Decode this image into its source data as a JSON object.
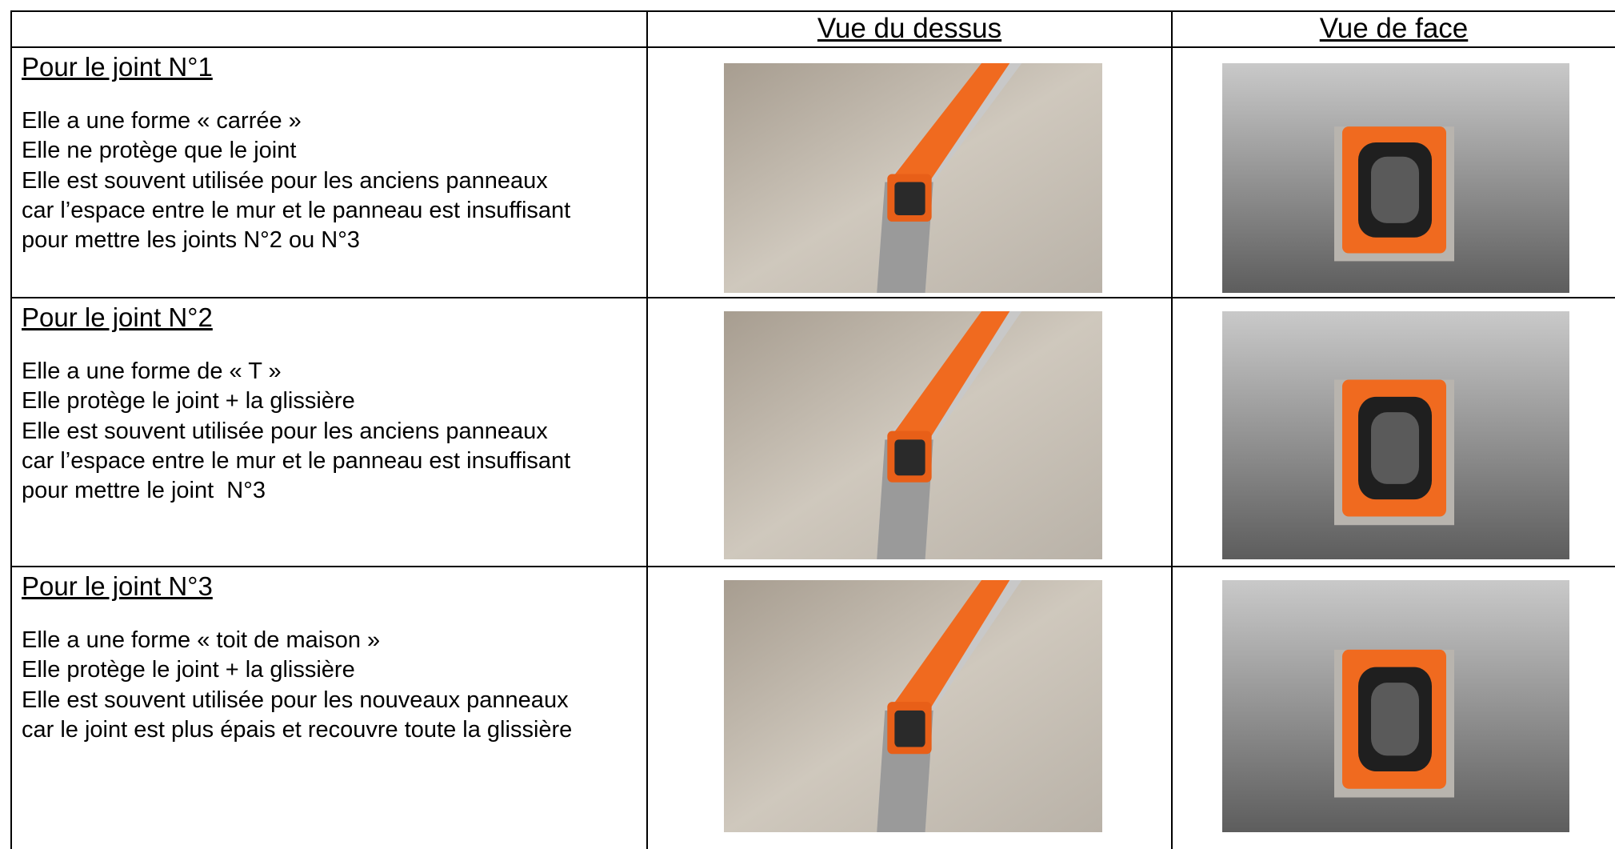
{
  "header": {
    "col2": "Vue du dessus",
    "col3": "Vue de face"
  },
  "rows": [
    {
      "title": "Pour le joint N°1",
      "lines": [
        "Elle a une forme « carrée »",
        "Elle ne protège que le joint",
        "Elle est souvent utilisée pour les anciens panneaux",
        "car l’espace entre le mur et le panneau est insuffisant",
        "pour mettre les joints N°2 ou N°3"
      ]
    },
    {
      "title": "Pour le joint N°2",
      "lines": [
        "Elle a une forme de « T »",
        "Elle protège le joint + la glissière",
        "Elle est souvent utilisée pour les anciens panneaux",
        "car l’espace entre le mur et le panneau est insuffisant",
        "pour mettre le joint  N°3"
      ]
    },
    {
      "title": "Pour le joint N°3",
      "lines": [
        "Elle a une forme « toit de maison »",
        "Elle protège le joint + la glissière",
        "Elle est souvent utilisée pour les nouveaux panneaux",
        "car le joint est plus épais et recouvre toute la glissière"
      ]
    }
  ]
}
